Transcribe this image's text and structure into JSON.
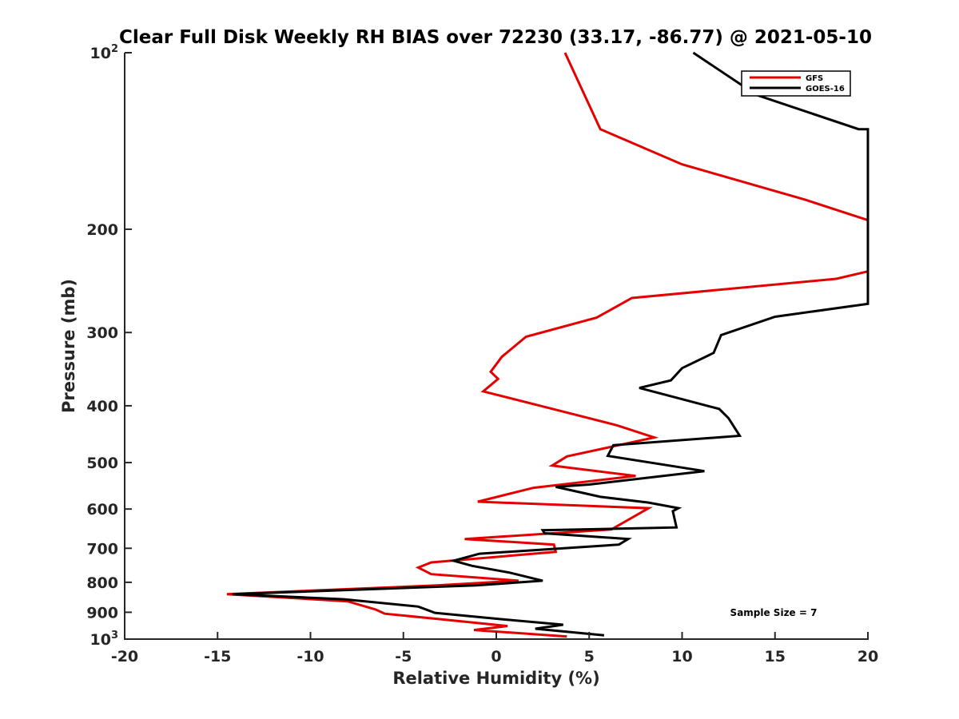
{
  "chart_data": {
    "type": "line",
    "title": "Clear Full Disk Weekly RH BIAS over 72230 (33.17, -86.77) @ 2021-05-10",
    "xlabel": "Relative Humidity (%)",
    "ylabel": "Pressure (mb)",
    "xlim": [
      -20,
      20
    ],
    "ylim": [
      100,
      1000
    ],
    "yscale": "log",
    "y_reversed": true,
    "x_ticks": [
      -20,
      -15,
      -10,
      -5,
      0,
      5,
      10,
      15,
      20
    ],
    "x_tick_labels": [
      "-20",
      "-15",
      "-10",
      "-5",
      "0",
      "5",
      "10",
      "15",
      "20"
    ],
    "y_ticks": [
      100,
      200,
      300,
      400,
      500,
      600,
      700,
      800,
      900,
      1000
    ],
    "y_tick_labels": [
      {
        "base": "10",
        "sup": "2"
      },
      {
        "base": "200",
        "sup": ""
      },
      {
        "base": "300",
        "sup": ""
      },
      {
        "base": "400",
        "sup": ""
      },
      {
        "base": "500",
        "sup": ""
      },
      {
        "base": "600",
        "sup": ""
      },
      {
        "base": "700",
        "sup": ""
      },
      {
        "base": "800",
        "sup": ""
      },
      {
        "base": "900",
        "sup": ""
      },
      {
        "base": "10",
        "sup": "3"
      }
    ],
    "legend": {
      "position": "top-right"
    },
    "annotation": "Sample Size = 7",
    "series": [
      {
        "name": "GFS",
        "color": "#e50000",
        "points": [
          [
            3.8,
            990
          ],
          [
            -1.2,
            965
          ],
          [
            0.6,
            950
          ],
          [
            -3.0,
            925
          ],
          [
            -6.0,
            905
          ],
          [
            -6.5,
            890
          ],
          [
            -8.0,
            862
          ],
          [
            -14.5,
            838
          ],
          [
            -3.2,
            810
          ],
          [
            1.2,
            795
          ],
          [
            -3.5,
            775
          ],
          [
            -4.2,
            755
          ],
          [
            -3.5,
            740
          ],
          [
            3.2,
            710
          ],
          [
            3.1,
            690
          ],
          [
            -1.7,
            675
          ],
          [
            6.2,
            650
          ],
          [
            8.2,
            598
          ],
          [
            -1.0,
            583
          ],
          [
            2.0,
            552
          ],
          [
            7.5,
            527
          ],
          [
            3.0,
            506
          ],
          [
            3.8,
            488
          ],
          [
            8.5,
            453
          ],
          [
            6.5,
            432
          ],
          [
            3.7,
            410
          ],
          [
            -0.7,
            378
          ],
          [
            0.1,
            360
          ],
          [
            -0.3,
            350
          ],
          [
            0.3,
            330
          ],
          [
            1.6,
            305
          ],
          [
            5.4,
            283
          ],
          [
            7.3,
            262
          ],
          [
            18.3,
            243
          ],
          [
            20.0,
            236
          ],
          [
            20.0,
            193
          ],
          [
            16.6,
            178
          ],
          [
            10.0,
            155
          ],
          [
            5.6,
            135
          ],
          [
            3.7,
            100
          ]
        ]
      },
      {
        "name": "GOES-16",
        "color": "#000000",
        "points": [
          [
            5.8,
            985
          ],
          [
            2.1,
            960
          ],
          [
            3.6,
            945
          ],
          [
            0.3,
            925
          ],
          [
            -3.3,
            902
          ],
          [
            -4.2,
            880
          ],
          [
            -8.2,
            855
          ],
          [
            -14.2,
            838
          ],
          [
            -1.1,
            810
          ],
          [
            2.5,
            795
          ],
          [
            0.7,
            770
          ],
          [
            -1.3,
            750
          ],
          [
            -2.3,
            735
          ],
          [
            -0.9,
            715
          ],
          [
            6.6,
            690
          ],
          [
            7.1,
            675
          ],
          [
            2.6,
            660
          ],
          [
            2.5,
            652
          ],
          [
            9.7,
            645
          ],
          [
            9.5,
            605
          ],
          [
            9.8,
            598
          ],
          [
            8.2,
            585
          ],
          [
            5.6,
            572
          ],
          [
            3.2,
            550
          ],
          [
            5.0,
            545
          ],
          [
            11.2,
            517
          ],
          [
            6.0,
            487
          ],
          [
            6.3,
            467
          ],
          [
            13.1,
            450
          ],
          [
            12.5,
            420
          ],
          [
            12.0,
            405
          ],
          [
            7.7,
            373
          ],
          [
            9.4,
            362
          ],
          [
            10.0,
            345
          ],
          [
            11.7,
            325
          ],
          [
            12.1,
            303
          ],
          [
            15.0,
            282
          ],
          [
            20.0,
            268
          ],
          [
            20.0,
            135
          ],
          [
            19.5,
            135
          ],
          [
            14.0,
            118
          ],
          [
            10.6,
            100
          ]
        ]
      }
    ]
  }
}
